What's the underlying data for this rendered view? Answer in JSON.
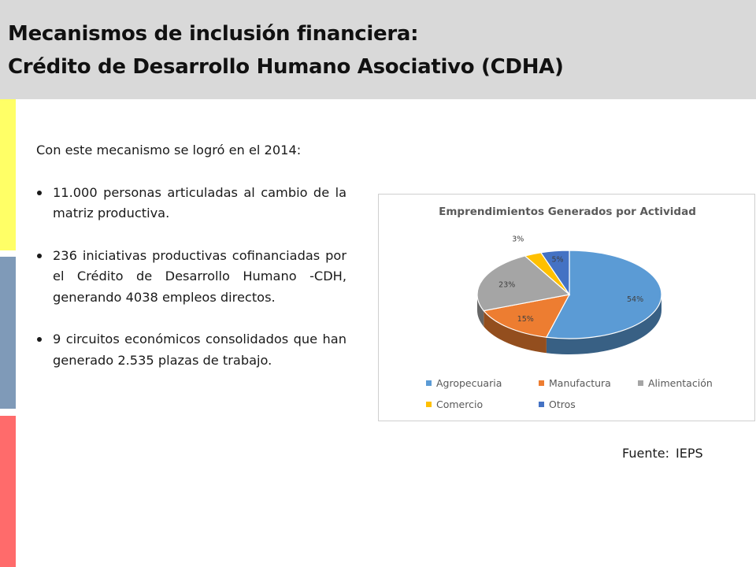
{
  "header": {
    "title_line1": "Mecanismos de inclusión financiera:",
    "title_line2": "Crédito de Desarrollo Humano Asociativo (CDHA)"
  },
  "stripes": {
    "yellow": "#ffff66",
    "blue": "#7f9ab8",
    "red": "#ff6b6b",
    "header_bg": "#d9d9d9"
  },
  "content": {
    "intro": "Con este mecanismo se logró en el 2014:",
    "bullets": [
      "11.000 personas articuladas al cambio de la matriz productiva.",
      "236 iniciativas productivas cofinanciadas por el Crédito de Desarrollo Humano -CDH, generando 4038 empleos directos.",
      "9 circuitos económicos consolidados que han generado 2.535 plazas de trabajo."
    ]
  },
  "source": "Fuente:  IEPS",
  "chart_data": {
    "type": "pie",
    "style": "3d",
    "title": "Emprendimientos Generados por Actividad",
    "categories": [
      "Agropecuaria",
      "Manufactura",
      "Alimentación",
      "Comercio",
      "Otros"
    ],
    "values": [
      54,
      15,
      23,
      3,
      5
    ],
    "labels": [
      "54%",
      "15%",
      "23%",
      "3%",
      "5%"
    ],
    "colors": [
      "#5b9bd5",
      "#ed7d31",
      "#a5a5a5",
      "#ffc000",
      "#4472c4"
    ],
    "legend_position": "bottom"
  }
}
